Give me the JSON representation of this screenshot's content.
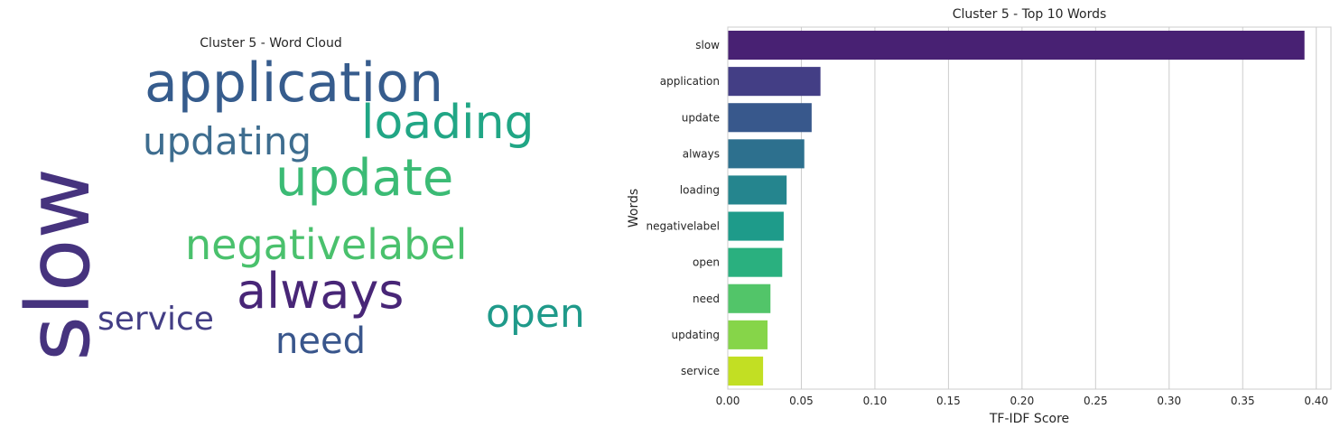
{
  "figure": {
    "wordcloud": {
      "title": "Cluster 5 - Word Cloud",
      "words": [
        {
          "text": "slow",
          "color": "#46337e"
        },
        {
          "text": "application",
          "color": "#365c8d"
        },
        {
          "text": "loading",
          "color": "#21a685"
        },
        {
          "text": "updating",
          "color": "#3e6d8f"
        },
        {
          "text": "update",
          "color": "#3bbb75"
        },
        {
          "text": "negativelabel",
          "color": "#4ac16d"
        },
        {
          "text": "always",
          "color": "#482677"
        },
        {
          "text": "service",
          "color": "#433e85"
        },
        {
          "text": "need",
          "color": "#39568c"
        },
        {
          "text": "open",
          "color": "#1f9a8a"
        }
      ]
    }
  },
  "chart_data": {
    "type": "bar",
    "orientation": "horizontal",
    "title": "Cluster 5 - Top 10 Words",
    "xlabel": "TF-IDF Score",
    "ylabel": "Words",
    "categories": [
      "slow",
      "application",
      "update",
      "always",
      "loading",
      "negativelabel",
      "open",
      "need",
      "updating",
      "service"
    ],
    "values": [
      0.392,
      0.063,
      0.057,
      0.052,
      0.04,
      0.038,
      0.037,
      0.029,
      0.027,
      0.024
    ],
    "xlim": [
      0,
      0.41
    ],
    "xticks": [
      "0.00",
      "0.05",
      "0.10",
      "0.15",
      "0.20",
      "0.25",
      "0.30",
      "0.35",
      "0.40"
    ],
    "grid": "vertical",
    "colors": [
      "#482173",
      "#433e85",
      "#38588c",
      "#2d708e",
      "#25858e",
      "#1e9b8a",
      "#2ab07f",
      "#52c569",
      "#86d549",
      "#c2df23"
    ]
  }
}
